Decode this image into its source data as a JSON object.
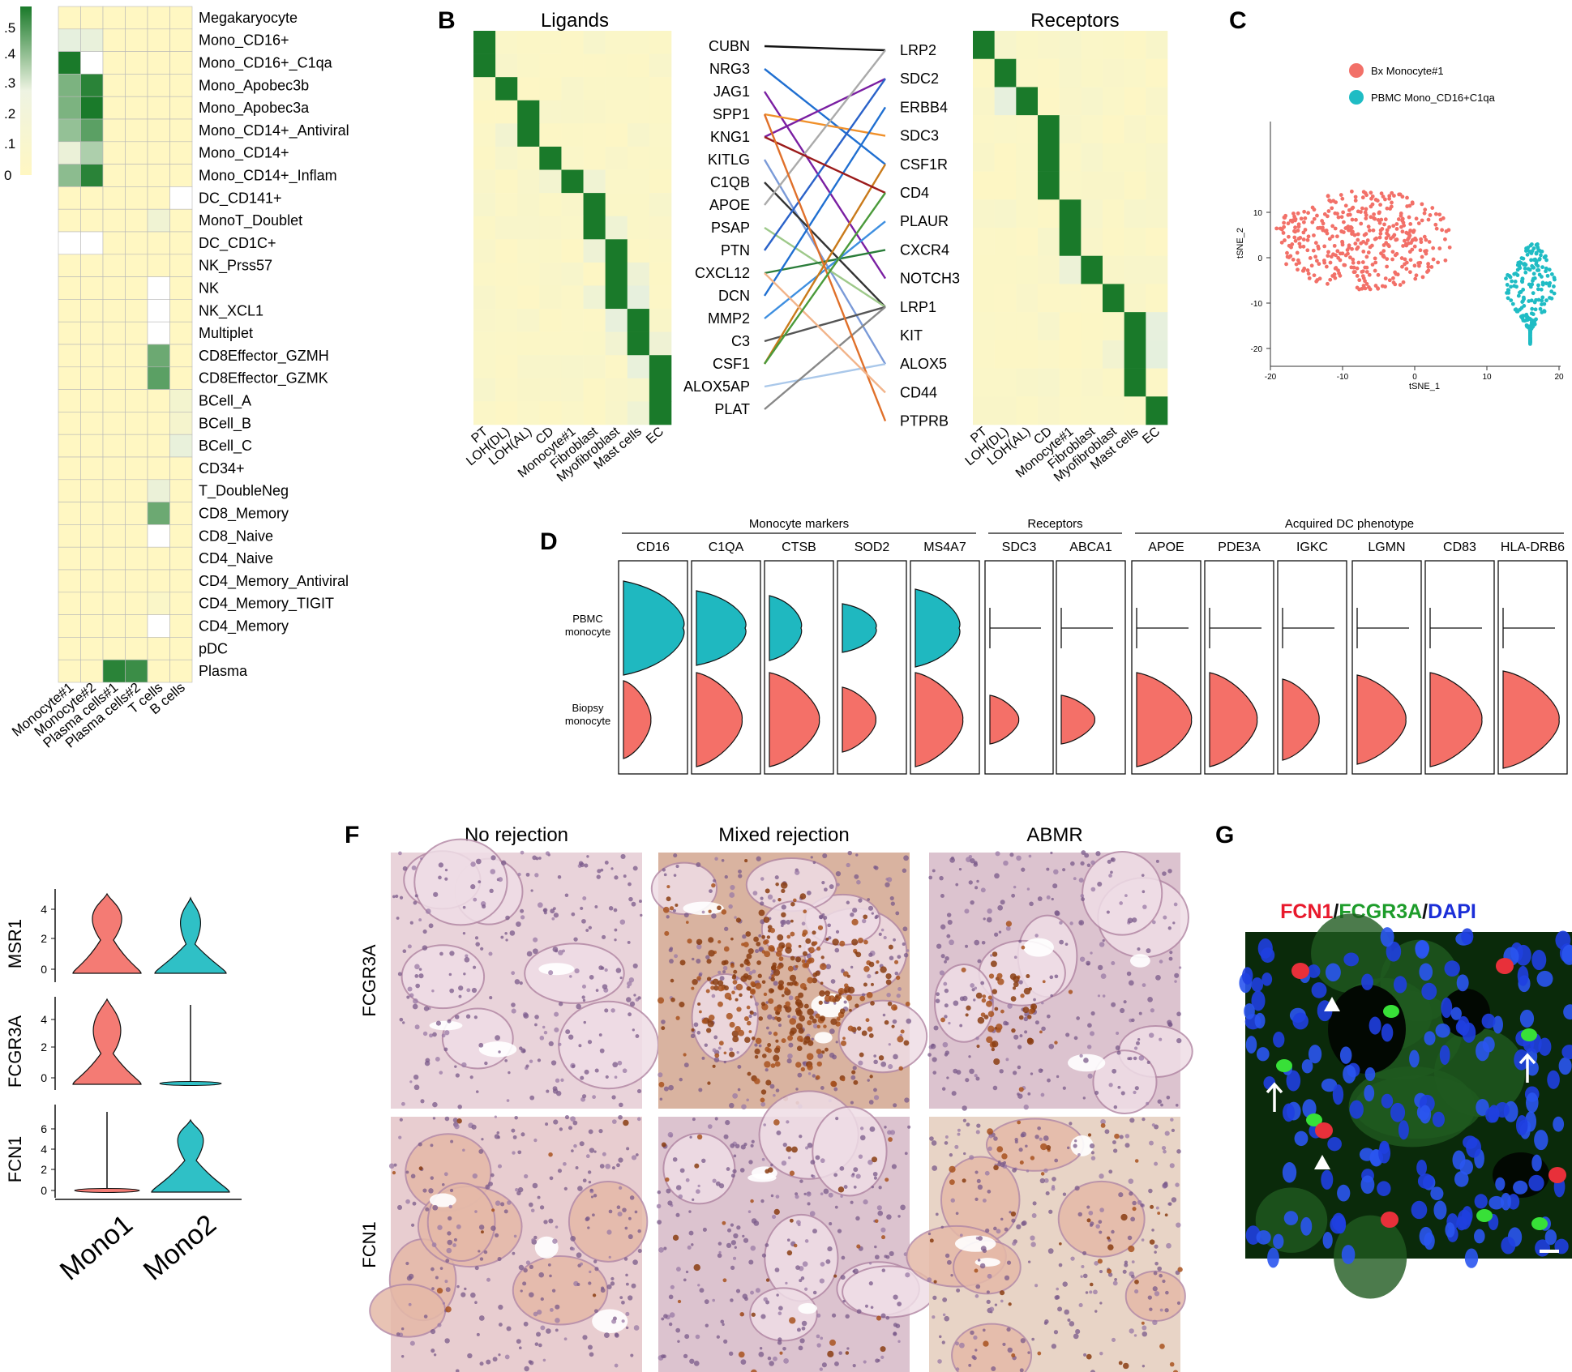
{
  "panels": {
    "A": {
      "label": "",
      "legend_ticks": [
        ".5",
        ".4",
        ".3",
        ".2",
        ".1",
        "0"
      ],
      "rows": [
        "Megakaryocyte",
        "Mono_CD16+",
        "Mono_CD16+_C1qa",
        "Mono_Apobec3b",
        "Mono_Apobec3a",
        "Mono_CD14+_Antiviral",
        "Mono_CD14+",
        "Mono_CD14+_Inflam",
        "DC_CD141+",
        "MonoT_Doublet",
        "DC_CD1C+",
        "NK_Prss57",
        "NK",
        "NK_XCL1",
        "Multiplet",
        "CD8Effector_GZMH",
        "CD8Effector_GZMK",
        "BCell_A",
        "BCell_B",
        "BCell_C",
        "CD34+",
        "T_DoubleNeg",
        "CD8_Memory",
        "CD8_Naive",
        "CD4_Naive",
        "CD4_Memory_Antiviral",
        "CD4_Memory_TIGIT",
        "CD4_Memory",
        "pDC",
        "Plasma"
      ],
      "cols": [
        "Monocyte#1",
        "Monocyte#2",
        "Plasma cells#1",
        "Plasma cells#2",
        "T cells",
        "B cells"
      ],
      "values": [
        [
          0,
          0,
          0,
          0,
          0,
          0
        ],
        [
          0.25,
          0.22,
          0,
          0,
          0,
          0
        ],
        [
          0.5,
          -1,
          0,
          0,
          0,
          0
        ],
        [
          0.38,
          0.48,
          0,
          0,
          0,
          0
        ],
        [
          0.38,
          0.5,
          0,
          0,
          0,
          0
        ],
        [
          0.35,
          0.42,
          0,
          0,
          0,
          0
        ],
        [
          0.2,
          0.32,
          0,
          0,
          0,
          0
        ],
        [
          0.36,
          0.48,
          0,
          0,
          0,
          0
        ],
        [
          0,
          0,
          0,
          0,
          0,
          -1
        ],
        [
          0,
          0,
          0,
          0,
          0.15,
          0
        ],
        [
          -1,
          -1,
          0,
          0,
          0,
          0
        ],
        [
          0,
          0,
          0,
          0,
          0,
          0
        ],
        [
          0,
          0,
          0,
          0,
          -1,
          0
        ],
        [
          0,
          0,
          0,
          0,
          -1,
          0
        ],
        [
          0,
          0,
          0,
          0,
          -1,
          0
        ],
        [
          0,
          0,
          0,
          0,
          0.4,
          0
        ],
        [
          0,
          0,
          0,
          0,
          0.42,
          0
        ],
        [
          0,
          0,
          0,
          0,
          0,
          0.12
        ],
        [
          0,
          0,
          0,
          0,
          0,
          0.1
        ],
        [
          0,
          0,
          0,
          0,
          0,
          0.22
        ],
        [
          0,
          0,
          0,
          0,
          0,
          0
        ],
        [
          0,
          0,
          0,
          0,
          0.2,
          0
        ],
        [
          0,
          0,
          0,
          0,
          0.4,
          0
        ],
        [
          0,
          0,
          0,
          0,
          -1,
          0
        ],
        [
          0,
          0,
          0,
          0,
          0,
          0
        ],
        [
          0,
          0,
          0,
          0,
          0,
          0
        ],
        [
          0,
          0,
          0,
          0,
          0.05,
          0
        ],
        [
          0,
          0,
          0,
          0,
          -1,
          0
        ],
        [
          0,
          0,
          0,
          0,
          0,
          0
        ],
        [
          0,
          0,
          0.48,
          0.46,
          0,
          0
        ]
      ]
    },
    "B": {
      "label": "B",
      "ligands_title": "Ligands",
      "receptors_title": "Receptors",
      "ligands": [
        "CUBN",
        "NRG3",
        "JAG1",
        "SPP1",
        "KNG1",
        "KITLG",
        "C1QB",
        "APOE",
        "PSAP",
        "PTN",
        "CXCL12",
        "DCN",
        "MMP2",
        "C3",
        "CSF1",
        "ALOX5AP",
        "PLAT"
      ],
      "receptors": [
        "LRP2",
        "SDC2",
        "ERBB4",
        "SDC3",
        "CSF1R",
        "CD4",
        "PLAUR",
        "CXCR4",
        "NOTCH3",
        "LRP1",
        "KIT",
        "ALOX5",
        "CD44",
        "PTPRB"
      ],
      "cell_types": [
        "PT",
        "LOH(DL)",
        "LOH(AL)",
        "CD",
        "Monocyte#1",
        "Fibroblast",
        "Myofibroblast",
        "Mast cells",
        "EC"
      ],
      "links": [
        {
          "from": 0,
          "to": 0,
          "color": "#111111"
        },
        {
          "from": 1,
          "to": 4,
          "color": "#1f6fd1"
        },
        {
          "from": 2,
          "to": 8,
          "color": "#7a1fa2"
        },
        {
          "from": 3,
          "to": 3,
          "color": "#f0902a"
        },
        {
          "from": 4,
          "to": 1,
          "color": "#7a1fa2"
        },
        {
          "from": 5,
          "to": 11,
          "color": "#7a9ad8"
        },
        {
          "from": 6,
          "to": 9,
          "color": "#333333"
        },
        {
          "from": 7,
          "to": 0,
          "color": "#aaaaaa"
        },
        {
          "from": 8,
          "to": 9,
          "color": "#9ec98a"
        },
        {
          "from": 9,
          "to": 1,
          "color": "#2a62c9"
        },
        {
          "from": 10,
          "to": 7,
          "color": "#2a7d3a"
        },
        {
          "from": 11,
          "to": 2,
          "color": "#1f6fd1"
        },
        {
          "from": 12,
          "to": 6,
          "color": "#3e8fe0"
        },
        {
          "from": 13,
          "to": 9,
          "color": "#555555"
        },
        {
          "from": 14,
          "to": 4,
          "color": "#c97a1a"
        },
        {
          "from": 15,
          "to": 11,
          "color": "#aac8ea"
        },
        {
          "from": 16,
          "to": 9,
          "color": "#888888"
        },
        {
          "from": 4,
          "to": 5,
          "color": "#9b1b1b"
        },
        {
          "from": 3,
          "to": 13,
          "color": "#e0702a"
        },
        {
          "from": 10,
          "to": 12,
          "color": "#f2b48a"
        },
        {
          "from": 14,
          "to": 5,
          "color": "#4a9a3a"
        }
      ]
    },
    "C": {
      "label": "C",
      "legend": [
        {
          "name": "Bx Monocyte#1",
          "color": "#f27068"
        },
        {
          "name": "PBMC Mono_CD16+C1qa",
          "color": "#1fbcc4"
        }
      ],
      "xlabel": "tSNE_1",
      "ylabel": "tSNE_2",
      "xticks": [
        "-20",
        "-10",
        "0",
        "10",
        "20"
      ],
      "yticks": [
        "10",
        "0",
        "-10",
        "-20"
      ]
    },
    "D": {
      "label": "D",
      "groups": [
        {
          "title": "Monocyte markers",
          "span": [
            0,
            4
          ]
        },
        {
          "title": "Receptors",
          "span": [
            5,
            6
          ]
        },
        {
          "title": "Acquired DC phenotype",
          "span": [
            7,
            12
          ]
        }
      ],
      "genes": [
        "CD16",
        "C1QA",
        "CTSB",
        "SOD2",
        "MS4A7",
        "SDC3",
        "ABCA1",
        "APOE",
        "PDE3A",
        "IGKC",
        "LGMN",
        "CD83",
        "HLA-DRB6"
      ],
      "row_labels": [
        [
          "PBMC",
          "monocyte"
        ],
        [
          "Biopsy",
          "monocyte"
        ]
      ],
      "pbmc_color": "#1fb8c0",
      "biopsy_color": "#f47068"
    },
    "E": {
      "label": "",
      "genes": [
        "MSR1",
        "FCGR3A",
        "FCN1"
      ],
      "groups": [
        "Mono1",
        "Mono2"
      ],
      "yticks": [
        [
          "4",
          "2",
          "0"
        ],
        [
          "4",
          "2",
          "0"
        ],
        [
          "6",
          "4",
          "2",
          "0"
        ]
      ],
      "colors": [
        "#f47b74",
        "#2fc0c6"
      ]
    },
    "F": {
      "label": "F",
      "columns": [
        "No rejection",
        "Mixed rejection",
        "ABMR"
      ],
      "rows": [
        "FCGR3A",
        "FCN1"
      ]
    },
    "G": {
      "label": "G",
      "title_parts": [
        {
          "text": "FCN1",
          "color": "#e8192c"
        },
        {
          "text": "/",
          "color": "#111111"
        },
        {
          "text": "FCGR3A",
          "color": "#1d9c2a"
        },
        {
          "text": "/",
          "color": "#111111"
        },
        {
          "text": "DAPI",
          "color": "#1b2ed8"
        }
      ]
    }
  }
}
